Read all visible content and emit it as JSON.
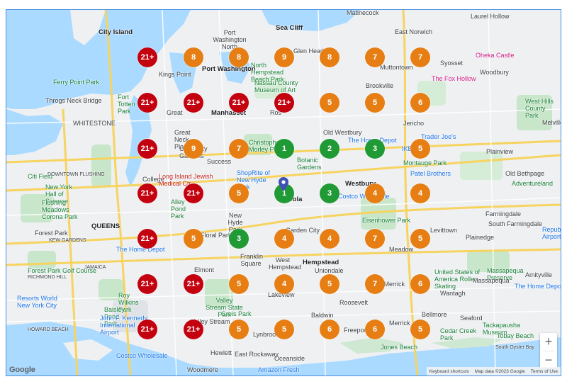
{
  "map": {
    "zoom_in_label": "+",
    "zoom_out_label": "−",
    "logo_text": "Google",
    "footer": {
      "keyboard": "Keyboard shortcuts",
      "data": "Map data ©2023 Google",
      "terms": "Terms of Use"
    },
    "colors": {
      "red": "#c4010f",
      "orange": "#e67e13",
      "green": "#1f9a34",
      "water": "#aadaff"
    }
  },
  "places": [
    {
      "name": "City Island",
      "style": ""
    },
    {
      "name": "Port Washington North",
      "style": ""
    },
    {
      "name": "Sea Cliff",
      "style": ""
    },
    {
      "name": "Matinecock",
      "style": ""
    },
    {
      "name": "Laurel Hollow",
      "style": ""
    },
    {
      "name": "East Norwich",
      "style": ""
    },
    {
      "name": "Glen Head",
      "style": ""
    },
    {
      "name": "Syosset",
      "style": ""
    },
    {
      "name": "Oheka Castle",
      "style": "pink"
    },
    {
      "name": "Woodbury",
      "style": ""
    },
    {
      "name": "Muttontown",
      "style": ""
    },
    {
      "name": "Kings Point",
      "style": ""
    },
    {
      "name": "Port Washington",
      "style": "bold"
    },
    {
      "name": "North Hempstead Beach Park",
      "style": "green"
    },
    {
      "name": "Nassau County Museum of Art",
      "style": "green"
    },
    {
      "name": "Brookville",
      "style": ""
    },
    {
      "name": "The Fox Hollow",
      "style": "pink"
    },
    {
      "name": "Ferry Point Park",
      "style": "green"
    },
    {
      "name": "Throgs Neck Bridge",
      "style": ""
    },
    {
      "name": "Fort Totten Park",
      "style": "green"
    },
    {
      "name": "Great",
      "style": ""
    },
    {
      "name": "Manhasset",
      "style": "bold"
    },
    {
      "name": "Ros",
      "style": ""
    },
    {
      "name": "Jericho",
      "style": ""
    },
    {
      "name": "Trader Joe's",
      "style": "blue"
    },
    {
      "name": "West Hills County Park",
      "style": "green"
    },
    {
      "name": "Melville",
      "style": ""
    },
    {
      "name": "WHITESTONE",
      "style": ""
    },
    {
      "name": "Great Neck Plaza",
      "style": ""
    },
    {
      "name": "Old Westbury",
      "style": ""
    },
    {
      "name": "The Home Depot",
      "style": "blue"
    },
    {
      "name": "IKEA",
      "style": "blue"
    },
    {
      "name": "University Gardens",
      "style": ""
    },
    {
      "name": "Christopher Morley Park",
      "style": "green"
    },
    {
      "name": "Plainview",
      "style": ""
    },
    {
      "name": "Success",
      "style": ""
    },
    {
      "name": "Botanic Gardens",
      "style": "green"
    },
    {
      "name": "Montauge Park",
      "style": "green"
    },
    {
      "name": "Patel Brothers",
      "style": "blue"
    },
    {
      "name": "Old Bethpage",
      "style": ""
    },
    {
      "name": "Adventureland",
      "style": "green"
    },
    {
      "name": "Citi Field",
      "style": "green"
    },
    {
      "name": "DOWNTOWN FLUSHING",
      "style": ""
    },
    {
      "name": "College",
      "style": ""
    },
    {
      "name": "Long Island Jewish Medical Ctr",
      "style": "red"
    },
    {
      "name": "ShopRite of New Hyde Park",
      "style": "blue"
    },
    {
      "name": "Westbury",
      "style": ""
    },
    {
      "name": "Costco Wholesale",
      "style": "blue"
    },
    {
      "name": "New York Hall of Science",
      "style": "green"
    },
    {
      "name": "Flushing Meadows Corona Park",
      "style": "green"
    },
    {
      "name": "Alley Pond Park",
      "style": "green"
    },
    {
      "name": "New Hyde Park",
      "style": ""
    },
    {
      "name": "Mineola",
      "style": ""
    },
    {
      "name": "Eisenhower Park",
      "style": "green"
    },
    {
      "name": "Farmingdale",
      "style": ""
    },
    {
      "name": "South Farmingdale",
      "style": ""
    },
    {
      "name": "Republic Airport",
      "style": "blue"
    },
    {
      "name": "QUEENS",
      "style": "bold"
    },
    {
      "name": "Forest Park",
      "style": ""
    },
    {
      "name": "Floral Park",
      "style": ""
    },
    {
      "name": "Garden City",
      "style": ""
    },
    {
      "name": "Levittown",
      "style": ""
    },
    {
      "name": "Plainedge",
      "style": ""
    },
    {
      "name": "KEW GARDENS",
      "style": ""
    },
    {
      "name": "The Home Depot",
      "style": "blue"
    },
    {
      "name": "Franklin Square",
      "style": ""
    },
    {
      "name": "West Hempstead",
      "style": ""
    },
    {
      "name": "Hempstead",
      "style": "bold"
    },
    {
      "name": "Meadow",
      "style": ""
    },
    {
      "name": "North Merrick",
      "style": ""
    },
    {
      "name": "United States of America Roller Skating",
      "style": "green"
    },
    {
      "name": "Massapequa Preserve",
      "style": "green"
    },
    {
      "name": "Forest Park Golf Course",
      "style": "green"
    },
    {
      "name": "RICHMOND HILL",
      "style": ""
    },
    {
      "name": "JAMAICA",
      "style": ""
    },
    {
      "name": "Elmont",
      "style": ""
    },
    {
      "name": "Uniondale",
      "style": ""
    },
    {
      "name": "Lakeview",
      "style": ""
    },
    {
      "name": "Wantagh",
      "style": ""
    },
    {
      "name": "Massapequa",
      "style": ""
    },
    {
      "name": "The Home Depot",
      "style": "blue"
    },
    {
      "name": "Amityville",
      "style": ""
    },
    {
      "name": "Resorts World New York City",
      "style": "blue"
    },
    {
      "name": "Roy Wilkins Park",
      "style": "green"
    },
    {
      "name": "Valley Stream State Park",
      "style": "green"
    },
    {
      "name": "Roosevelt",
      "style": ""
    },
    {
      "name": "Baisley Pond Park",
      "style": "green"
    },
    {
      "name": "Greis Park",
      "style": "green"
    },
    {
      "name": "Baldwin",
      "style": ""
    },
    {
      "name": "Bellmore",
      "style": ""
    },
    {
      "name": "Seaford",
      "style": ""
    },
    {
      "name": "John F. Kennedy International Airport",
      "style": "blue"
    },
    {
      "name": "Valley Stream",
      "style": ""
    },
    {
      "name": "Merrick",
      "style": ""
    },
    {
      "name": "Tackapausha Museum",
      "style": "green"
    },
    {
      "name": "Cedar Creek Park",
      "style": "green"
    },
    {
      "name": "Tobay Beach",
      "style": "green"
    },
    {
      "name": "HOWARD BEACH",
      "style": ""
    },
    {
      "name": "Lynbrook",
      "style": ""
    },
    {
      "name": "Freeport",
      "style": ""
    },
    {
      "name": "Jones Beach",
      "style": "green"
    },
    {
      "name": "Hewlett",
      "style": ""
    },
    {
      "name": "East Rockaway",
      "style": ""
    },
    {
      "name": "Oceanside",
      "style": ""
    },
    {
      "name": "Costco Wholesale",
      "style": "blue"
    },
    {
      "name": "Amazon Fresh",
      "style": "blue"
    },
    {
      "name": "Woodmere",
      "style": ""
    },
    {
      "name": "South Oyster Bay",
      "style": ""
    }
  ],
  "clusters": [
    {
      "label": "21+",
      "color": "red"
    },
    {
      "label": "8",
      "color": "orange"
    },
    {
      "label": "8",
      "color": "orange"
    },
    {
      "label": "9",
      "color": "orange"
    },
    {
      "label": "8",
      "color": "orange"
    },
    {
      "label": "7",
      "color": "orange"
    },
    {
      "label": "7",
      "color": "orange"
    },
    {
      "label": "21+",
      "color": "red"
    },
    {
      "label": "21+",
      "color": "red"
    },
    {
      "label": "21+",
      "color": "red"
    },
    {
      "label": "21+",
      "color": "red"
    },
    {
      "label": "5",
      "color": "orange"
    },
    {
      "label": "5",
      "color": "orange"
    },
    {
      "label": "6",
      "color": "orange"
    },
    {
      "label": "21+",
      "color": "red"
    },
    {
      "label": "9",
      "color": "orange"
    },
    {
      "label": "7",
      "color": "orange"
    },
    {
      "label": "1",
      "color": "green"
    },
    {
      "label": "2",
      "color": "green"
    },
    {
      "label": "3",
      "color": "green"
    },
    {
      "label": "5",
      "color": "orange"
    },
    {
      "label": "21+",
      "color": "red"
    },
    {
      "label": "21+",
      "color": "red"
    },
    {
      "label": "5",
      "color": "orange"
    },
    {
      "label": "1",
      "color": "green"
    },
    {
      "label": "3",
      "color": "green"
    },
    {
      "label": "4",
      "color": "orange"
    },
    {
      "label": "4",
      "color": "orange"
    },
    {
      "label": "21+",
      "color": "red"
    },
    {
      "label": "5",
      "color": "orange"
    },
    {
      "label": "3",
      "color": "green"
    },
    {
      "label": "4",
      "color": "orange"
    },
    {
      "label": "4",
      "color": "orange"
    },
    {
      "label": "7",
      "color": "orange"
    },
    {
      "label": "5",
      "color": "orange"
    },
    {
      "label": "21+",
      "color": "red"
    },
    {
      "label": "21+",
      "color": "red"
    },
    {
      "label": "5",
      "color": "orange"
    },
    {
      "label": "4",
      "color": "orange"
    },
    {
      "label": "5",
      "color": "orange"
    },
    {
      "label": "7",
      "color": "orange"
    },
    {
      "label": "6",
      "color": "orange"
    },
    {
      "label": "21+",
      "color": "red"
    },
    {
      "label": "21+",
      "color": "red"
    },
    {
      "label": "5",
      "color": "orange"
    },
    {
      "label": "5",
      "color": "orange"
    },
    {
      "label": "6",
      "color": "orange"
    },
    {
      "label": "6",
      "color": "orange"
    },
    {
      "label": "5",
      "color": "orange"
    }
  ]
}
